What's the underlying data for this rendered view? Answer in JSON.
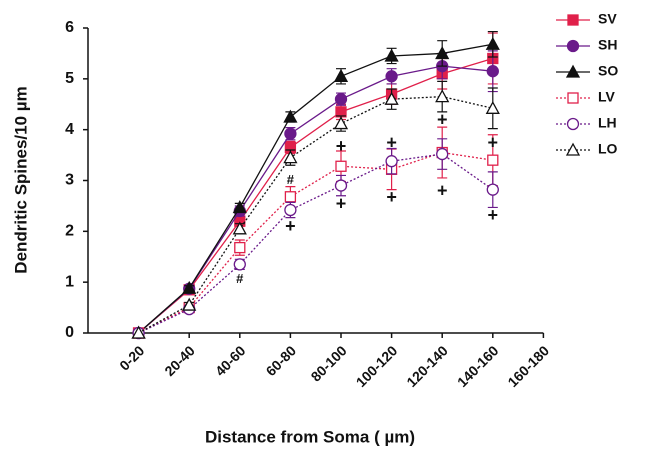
{
  "chart_data": {
    "type": "line",
    "y_label": "Dendritic Spines/10  µm",
    "x_label": "Distance from Soma ( µm)",
    "categories": [
      "0-20",
      "20-40",
      "40-60",
      "60-80",
      "80-100",
      "100-120",
      "120-140",
      "140-160",
      "160-180"
    ],
    "ylim": [
      0,
      6
    ],
    "yticks": [
      0,
      1,
      2,
      3,
      4,
      5,
      6
    ],
    "series": [
      {
        "name": "SV",
        "color": "#e0204a",
        "marker": "square",
        "filled": true,
        "dash": false,
        "values": [
          0,
          0.85,
          2.2,
          3.65,
          4.35,
          4.7,
          5.1,
          5.4,
          null
        ],
        "errors": [
          null,
          0.05,
          0.1,
          0.12,
          0.15,
          0.2,
          0.3,
          0.5,
          null
        ]
      },
      {
        "name": "SH",
        "color": "#6a1a8a",
        "marker": "circle",
        "filled": true,
        "dash": false,
        "values": [
          0,
          0.87,
          2.4,
          3.92,
          4.6,
          5.05,
          5.25,
          5.15,
          null
        ],
        "errors": [
          null,
          0.05,
          0.1,
          0.12,
          0.12,
          0.15,
          0.25,
          0.4,
          null
        ]
      },
      {
        "name": "SO",
        "color": "#111111",
        "marker": "triangle",
        "filled": true,
        "dash": false,
        "values": [
          0,
          0.88,
          2.47,
          4.25,
          5.05,
          5.45,
          5.5,
          5.68,
          null
        ],
        "errors": [
          null,
          0.05,
          0.08,
          0.1,
          0.15,
          0.15,
          0.25,
          0.25,
          null
        ]
      },
      {
        "name": "LV",
        "color": "#e0204a",
        "marker": "square",
        "filled": false,
        "dash": true,
        "values": [
          0,
          0.5,
          1.68,
          2.68,
          3.28,
          3.22,
          3.55,
          3.4,
          null
        ],
        "errors": [
          null,
          0.05,
          0.15,
          0.2,
          0.3,
          0.4,
          0.5,
          0.5,
          null
        ]
      },
      {
        "name": "LH",
        "color": "#6a1a8a",
        "marker": "circle",
        "filled": false,
        "dash": true,
        "values": [
          0,
          0.47,
          1.35,
          2.42,
          2.9,
          3.38,
          3.52,
          2.82,
          null
        ],
        "errors": [
          null,
          0.05,
          0.1,
          0.15,
          0.2,
          0.25,
          0.3,
          0.35,
          null
        ]
      },
      {
        "name": "LO",
        "color": "#111111",
        "marker": "triangle",
        "filled": false,
        "dash": true,
        "values": [
          0,
          0.55,
          2.05,
          3.45,
          4.12,
          4.6,
          4.65,
          4.42,
          null
        ],
        "errors": [
          null,
          0.05,
          0.1,
          0.15,
          0.15,
          0.2,
          0.3,
          0.4,
          null
        ]
      }
    ],
    "annotations": [
      {
        "text": "#",
        "x": "40-60",
        "y": 1.05
      },
      {
        "text": "#",
        "x": "60-80",
        "y": 3.0
      },
      {
        "text": "+",
        "x": "60-80",
        "y": 2.08
      },
      {
        "text": "+",
        "x": "80-100",
        "y": 3.65
      },
      {
        "text": "+",
        "x": "80-100",
        "y": 2.52
      },
      {
        "text": "+",
        "x": "100-120",
        "y": 3.72
      },
      {
        "text": "+",
        "x": "100-120",
        "y": 2.65
      },
      {
        "text": "+",
        "x": "120-140",
        "y": 4.18
      },
      {
        "text": "+",
        "x": "120-140",
        "y": 2.78
      },
      {
        "text": "+",
        "x": "140-160",
        "y": 3.72
      },
      {
        "text": "+",
        "x": "140-160",
        "y": 2.3
      }
    ]
  }
}
